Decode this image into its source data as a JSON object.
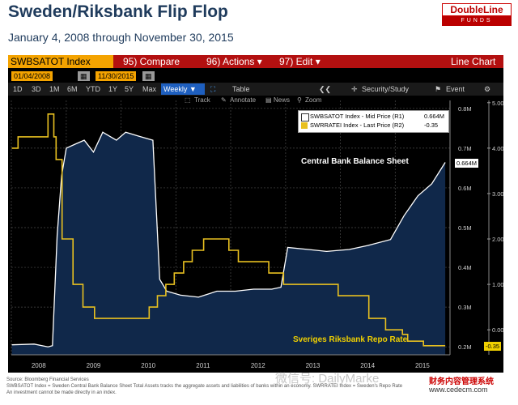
{
  "header": {
    "title": "Sweden/Riksbank Flip Flop",
    "subtitle": "January 4, 2008 through November 30, 2015",
    "logo_top": "DoubleLine",
    "logo_bottom": "FUNDS"
  },
  "terminal": {
    "ticker": "SWBSATOT Index",
    "compare": "95) Compare",
    "actions": "96) Actions ▾",
    "edit": "97) Edit ▾",
    "line_chart": "Line Chart",
    "start_date": "01/04/2008",
    "end_date": "11/30/2015",
    "ranges": [
      "1D",
      "3D",
      "1M",
      "6M",
      "YTD",
      "1Y",
      "5Y",
      "Max"
    ],
    "frequency": "Weekly ▼",
    "table": "Table",
    "security_study": "Security/Study",
    "event": "Event",
    "track": "Track",
    "annotate": "Annotate",
    "news": "News",
    "zoom": "Zoom",
    "gear_icon": "gear-icon",
    "colors": {
      "balance": "#ffffff",
      "fill": "#10284a",
      "repo": "#e8c020",
      "orange": "#f4a300",
      "red": "#b31010"
    }
  },
  "legend": {
    "balance": "SWBSATOT Index - Mid Price (R1)",
    "balance_val": "0.664M",
    "repo": "SWRRATEI Index - Last Price (R2)",
    "repo_val": "-0.35"
  },
  "annotations": {
    "balance": "Central Bank Balance Sheet",
    "repo": "Sveriges Riksbank Repo Rate",
    "balance_tag": "0.664M",
    "repo_tag": "-0.35"
  },
  "chart_data": {
    "type": "line",
    "x_ticks": [
      "2008",
      "2009",
      "2010",
      "2011",
      "2012",
      "2013",
      "2014",
      "2015"
    ],
    "r1_ticks": [
      "0.8M",
      "0.7M",
      "0.6M",
      "0.5M",
      "0.4M",
      "0.3M",
      "0.2M"
    ],
    "r2_ticks": [
      "5.00",
      "4.00",
      "3.00",
      "2.00",
      "1.00",
      "0.00"
    ],
    "r1_range": [
      0.18,
      0.82
    ],
    "r2_range": [
      -0.55,
      5.05
    ],
    "series": [
      {
        "name": "SWBSATOT Index - Mid Price (R1)",
        "axis": "R1",
        "points": [
          [
            "2008-01-04",
            0.205
          ],
          [
            "2008-06-01",
            0.207
          ],
          [
            "2008-09-01",
            0.2
          ],
          [
            "2008-10-01",
            0.203
          ],
          [
            "2008-11-01",
            0.48
          ],
          [
            "2008-12-01",
            0.63
          ],
          [
            "2009-01-01",
            0.7
          ],
          [
            "2009-03-01",
            0.71
          ],
          [
            "2009-05-01",
            0.72
          ],
          [
            "2009-07-01",
            0.69
          ],
          [
            "2009-09-01",
            0.74
          ],
          [
            "2009-12-01",
            0.72
          ],
          [
            "2010-02-01",
            0.74
          ],
          [
            "2010-05-01",
            0.73
          ],
          [
            "2010-08-01",
            0.72
          ],
          [
            "2010-09-15",
            0.37
          ],
          [
            "2010-11-01",
            0.34
          ],
          [
            "2011-02-01",
            0.33
          ],
          [
            "2011-06-01",
            0.325
          ],
          [
            "2011-10-01",
            0.34
          ],
          [
            "2012-02-01",
            0.34
          ],
          [
            "2012-06-01",
            0.345
          ],
          [
            "2012-10-01",
            0.345
          ],
          [
            "2012-12-01",
            0.35
          ],
          [
            "2013-01-15",
            0.45
          ],
          [
            "2013-06-01",
            0.445
          ],
          [
            "2013-10-01",
            0.44
          ],
          [
            "2014-03-01",
            0.445
          ],
          [
            "2014-07-01",
            0.455
          ],
          [
            "2014-12-01",
            0.47
          ],
          [
            "2015-03-01",
            0.53
          ],
          [
            "2015-06-01",
            0.58
          ],
          [
            "2015-09-01",
            0.61
          ],
          [
            "2015-11-30",
            0.664
          ]
        ]
      },
      {
        "name": "SWRRATEI Index - Last Price (R2)",
        "axis": "R2",
        "points": [
          [
            "2008-01-04",
            4.0
          ],
          [
            "2008-02-15",
            4.25
          ],
          [
            "2008-09-01",
            4.75
          ],
          [
            "2008-10-10",
            4.25
          ],
          [
            "2008-10-25",
            3.75
          ],
          [
            "2008-12-04",
            2.0
          ],
          [
            "2009-02-15",
            1.0
          ],
          [
            "2009-04-22",
            0.5
          ],
          [
            "2009-07-08",
            0.25
          ],
          [
            "2010-07-07",
            0.5
          ],
          [
            "2010-08-31",
            0.75
          ],
          [
            "2010-10-26",
            1.0
          ],
          [
            "2010-12-21",
            1.25
          ],
          [
            "2011-02-22",
            1.5
          ],
          [
            "2011-04-20",
            1.75
          ],
          [
            "2011-07-05",
            2.0
          ],
          [
            "2011-12-20",
            1.75
          ],
          [
            "2012-02-21",
            1.5
          ],
          [
            "2012-09-11",
            1.25
          ],
          [
            "2012-12-18",
            1.0
          ],
          [
            "2013-12-17",
            0.75
          ],
          [
            "2014-07-09",
            0.25
          ],
          [
            "2014-10-29",
            0.0
          ],
          [
            "2015-02-18",
            -0.1
          ],
          [
            "2015-03-25",
            -0.25
          ],
          [
            "2015-07-08",
            -0.35
          ],
          [
            "2015-11-30",
            -0.35
          ]
        ]
      }
    ]
  },
  "footer": {
    "source": "Source: Bloomberg Financial Services",
    "note1": "SWBSATOT Index = Sweden Central Bank Balance Sheet Total Assets tracks the aggregate assets and liabilities of banks within an economy. SWRRATEI Index = Sweden's Repo Rate",
    "note2": "An investment cannot be made directly in an index.",
    "watermark": "微信号: DailyMarke",
    "watermark2": "财务内容管理系统",
    "watermark3": "www.cedecm.com"
  }
}
